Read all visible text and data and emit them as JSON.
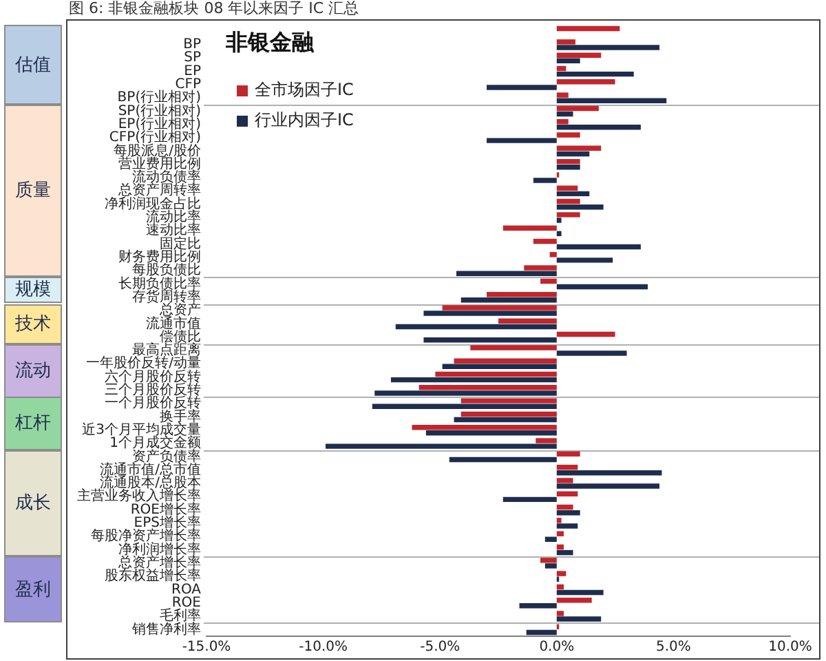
{
  "chart_data": {
    "type": "bar",
    "orientation": "horizontal",
    "title": "非银金融",
    "annotations": [
      "图 6: 非银金融板块 08 年以来因子 IC 汇总",
      "估值",
      "质量",
      "规模",
      "技术",
      "流动",
      "杠杆",
      "成长",
      "盈利"
    ],
    "categories": [
      null,
      "BP",
      "SP",
      "EP",
      "CFP",
      "BP(行业相对)",
      "SP(行业相对)",
      "EP(行业相对)",
      "CFP(行业相对)",
      "每股派息/股价",
      "营业费用比例",
      "流动负债率",
      "总资产周转率",
      "净利润现金占比",
      "流动比率",
      "速动比率",
      "固定比",
      "财务费用比例",
      "每股负债比",
      "长期负债比率",
      "存货周转率",
      "总资产",
      "流通市值",
      "偿债比",
      "最高点距离",
      "一年股价反转/动量",
      "六个月股价反转",
      "三个月股价反转",
      "一个月股价反转",
      "换手率",
      "近3个月平均成交量",
      "1个月成交金额",
      "资产负债率",
      "流通市值/总市值",
      "流通股本/总股本",
      "主营业务收入增长率",
      "ROE增长率",
      "EPS增长率",
      "每股净资产增长率",
      "净利润增长率",
      "总资产增长率",
      "股东权益增长率",
      "ROA",
      "ROE",
      "毛利率",
      "销售净利率"
    ],
    "series": [
      {
        "name": "全市场因子IC",
        "color": "#c0272d",
        "values": [
          2.7,
          0.8,
          1.9,
          0.4,
          2.5,
          0.5,
          1.8,
          0.5,
          1.0,
          1.9,
          1.0,
          0.1,
          0.9,
          1.0,
          1.0,
          -2.3,
          -1.0,
          -0.3,
          -1.4,
          -0.7,
          -3.0,
          -4.9,
          -2.5,
          2.5,
          -3.7,
          -4.4,
          -5.2,
          -5.9,
          -4.1,
          -4.1,
          -6.2,
          -0.9,
          1.0,
          0.9,
          0.7,
          0.9,
          0.7,
          0.2,
          0.3,
          0.3,
          -0.7,
          0.4,
          0.3,
          1.5,
          0.3,
          0.1
        ]
      },
      {
        "name": "行业内因子IC",
        "color": "#1f2d4d",
        "values": [
          null,
          4.4,
          1.0,
          3.3,
          -3.0,
          4.7,
          0.7,
          3.6,
          -3.0,
          1.4,
          1.0,
          -1.0,
          1.4,
          2.0,
          0.2,
          0.2,
          3.6,
          2.4,
          -4.3,
          3.9,
          -4.1,
          -5.7,
          -6.9,
          -5.7,
          3.0,
          -4.9,
          -7.1,
          -7.8,
          -7.9,
          -4.4,
          -5.6,
          -9.9,
          -4.6,
          4.5,
          4.4,
          -2.3,
          1.0,
          0.9,
          -0.5,
          0.7,
          -0.5,
          0.1,
          2.0,
          -1.6,
          1.9,
          -1.3
        ]
      }
    ],
    "xlim": [
      -15,
      10
    ],
    "xticks": [
      {
        "value": -15,
        "label": "-15.0%"
      },
      {
        "value": -10,
        "label": "-10.0%"
      },
      {
        "value": -5,
        "label": "-5.0%"
      },
      {
        "value": 0,
        "label": "0.0%"
      },
      {
        "value": 5,
        "label": "5.0%"
      },
      {
        "value": 10,
        "label": "10.0%"
      }
    ],
    "legend": "top left"
  }
}
